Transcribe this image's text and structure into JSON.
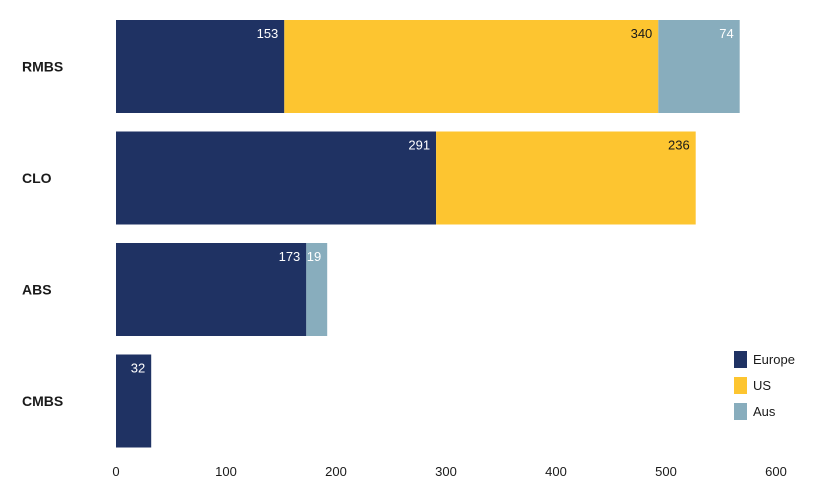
{
  "chart_data": {
    "type": "bar",
    "orientation": "horizontal",
    "stacked": true,
    "title": "",
    "xlabel": "",
    "ylabel": "",
    "categories": [
      "RMBS",
      "CLO",
      "ABS",
      "CMBS"
    ],
    "series": [
      {
        "name": "Europe",
        "color": "#1f3263",
        "label_color": "#ffffff",
        "values": [
          153,
          291,
          173,
          32
        ]
      },
      {
        "name": "US",
        "color": "#fdc530",
        "label_color": "#1a1a1a",
        "values": [
          340,
          236,
          null,
          null
        ]
      },
      {
        "name": "Aus",
        "color": "#88adbd",
        "label_color": "#ffffff",
        "values": [
          74,
          null,
          19,
          null
        ]
      }
    ],
    "xlim": [
      0,
      600
    ],
    "xticks": [
      0,
      100,
      200,
      300,
      400,
      500,
      600
    ],
    "grid": false,
    "legend_position": "bottom-right"
  }
}
